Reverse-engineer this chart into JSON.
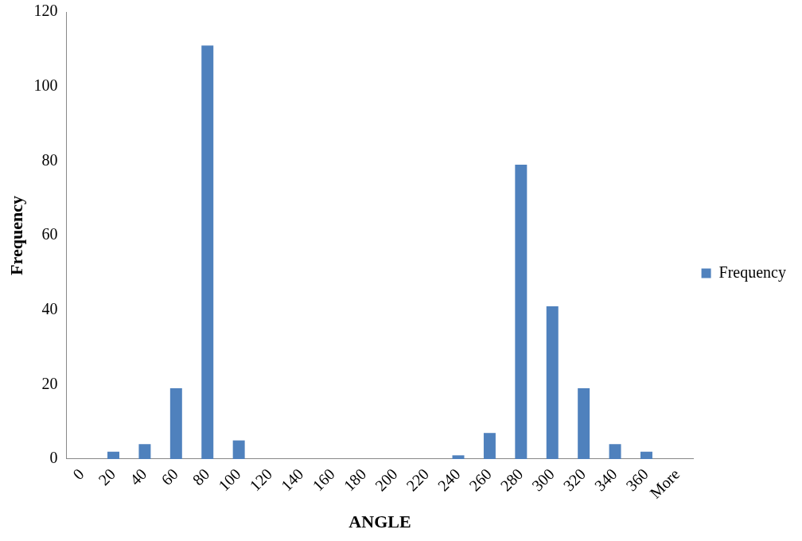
{
  "chart_data": {
    "type": "bar",
    "xlabel": "ANGLE",
    "ylabel": "Frequency",
    "categories": [
      "0",
      "20",
      "40",
      "60",
      "80",
      "100",
      "120",
      "140",
      "160",
      "180",
      "200",
      "220",
      "240",
      "260",
      "280",
      "300",
      "320",
      "340",
      "360",
      "More"
    ],
    "series": [
      {
        "name": "Frequency",
        "color": "#4f81bd",
        "values": [
          0,
          2,
          4,
          19,
          111,
          5,
          0,
          0,
          0,
          0,
          0,
          0,
          1,
          7,
          79,
          41,
          19,
          4,
          2,
          0
        ]
      }
    ],
    "ylim": [
      0,
      120
    ],
    "yticks": [
      0,
      20,
      40,
      60,
      80,
      100,
      120
    ],
    "grid": false,
    "legend": "right"
  }
}
